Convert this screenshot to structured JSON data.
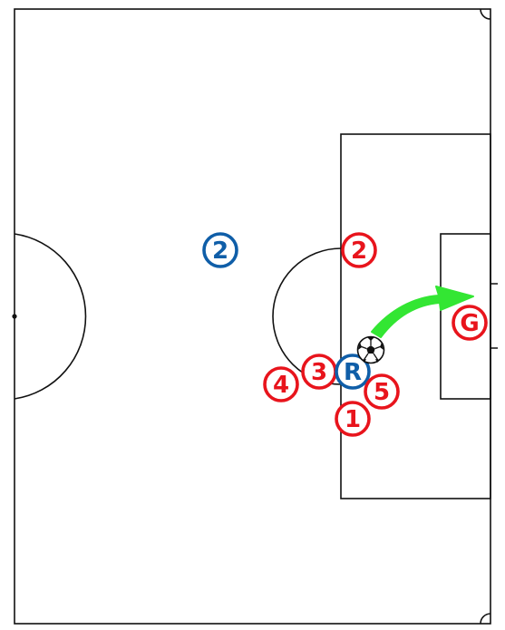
{
  "colors": {
    "line": "#111111",
    "attack": "#e8141c",
    "defend": "#0f5ea8",
    "arrow": "#33e633",
    "field": "#ffffff"
  },
  "players": [
    {
      "id": "blue-2",
      "team": "defend",
      "label": "2"
    },
    {
      "id": "red-2",
      "team": "attack",
      "label": "2"
    },
    {
      "id": "red-G",
      "team": "attack",
      "label": "G"
    },
    {
      "id": "red-3",
      "team": "attack",
      "label": "3"
    },
    {
      "id": "blue-R",
      "team": "defend",
      "label": "R"
    },
    {
      "id": "red-4",
      "team": "attack",
      "label": "4"
    },
    {
      "id": "red-5",
      "team": "attack",
      "label": "5"
    },
    {
      "id": "red-1",
      "team": "attack",
      "label": "1"
    }
  ],
  "ball": {
    "icon": "soccer-ball-icon"
  },
  "arrow": {
    "icon": "curved-arrow-icon"
  }
}
